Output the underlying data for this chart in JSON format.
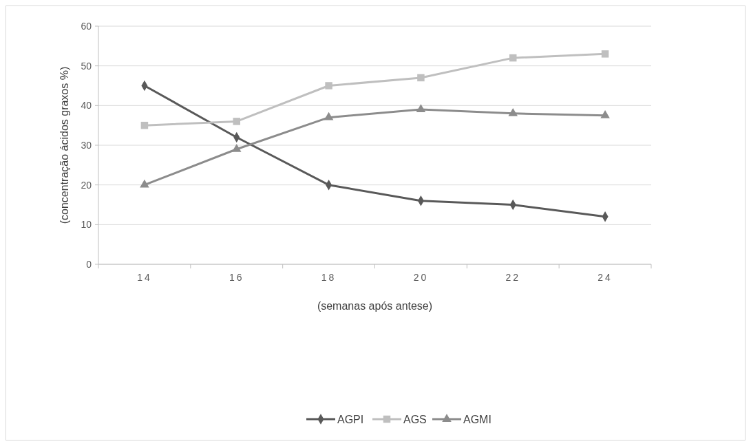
{
  "chart_data": {
    "type": "line",
    "xlabel": "(semanas após antese)",
    "ylabel": "(concentração ácidos graxos %)",
    "categories": [
      "14",
      "16",
      "18",
      "20",
      "22",
      "24"
    ],
    "ylim": [
      0,
      60
    ],
    "yticks": [
      0,
      10,
      20,
      30,
      40,
      50,
      60
    ],
    "grid": "y",
    "legend": "bottom",
    "series": [
      {
        "name": "AGPI",
        "color": "#595959",
        "marker": "diamond",
        "values": [
          45,
          32,
          20,
          16,
          15,
          12
        ]
      },
      {
        "name": "AGS",
        "color": "#bfbfbf",
        "marker": "square",
        "values": [
          35,
          36,
          45,
          47,
          52,
          53
        ]
      },
      {
        "name": "AGMI",
        "color": "#8c8c8c",
        "marker": "triangle",
        "values": [
          20,
          29,
          37,
          39,
          38,
          37.5
        ]
      }
    ]
  }
}
